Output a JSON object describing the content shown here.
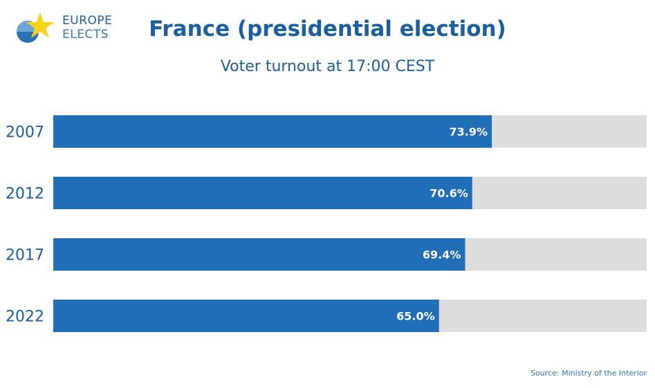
{
  "brand": {
    "line1": "EUROPE",
    "line2": "ELECTS"
  },
  "colors": {
    "bar": "#1f6eb7",
    "track": "#dddddd",
    "text": "#1a5fa0",
    "label": "#ffffff"
  },
  "chart_data": {
    "type": "bar",
    "orientation": "horizontal",
    "title": "France (presidential election)",
    "subtitle": "Voter turnout at 17:00 CEST",
    "categories": [
      "2007",
      "2012",
      "2017",
      "2022"
    ],
    "values": [
      73.9,
      70.6,
      69.4,
      65.0
    ],
    "data_labels": [
      "73.9%",
      "70.6%",
      "69.4%",
      "65.0%"
    ],
    "xlim": [
      0,
      100
    ],
    "grid": false,
    "legend": "none"
  },
  "source": "Source: Ministry of the Interior"
}
